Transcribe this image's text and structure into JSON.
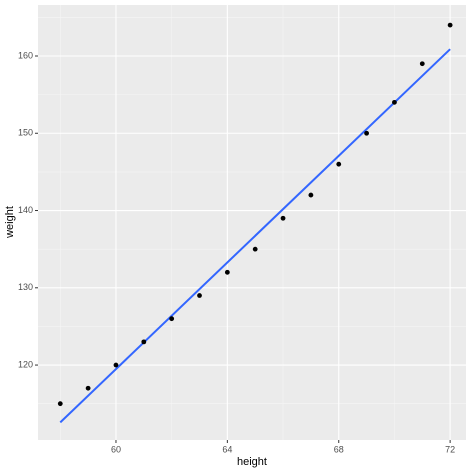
{
  "chart_data": {
    "type": "scatter",
    "x_label": "height",
    "y_label": "weight",
    "x": [
      58,
      59,
      60,
      61,
      62,
      63,
      64,
      65,
      66,
      67,
      68,
      69,
      70,
      71,
      72
    ],
    "values": [
      115,
      117,
      120,
      123,
      126,
      129,
      132,
      135,
      139,
      142,
      146,
      150,
      154,
      159,
      164
    ],
    "color": "#000000",
    "fit": {
      "x": [
        58,
        72
      ],
      "values": [
        112.58,
        160.88
      ],
      "color": "#3366ff"
    },
    "xlim": [
      57.2,
      72.57
    ],
    "ylim": [
      110.3,
      166.6
    ],
    "xticks": [
      60,
      64,
      68,
      72
    ],
    "yticks": [
      120,
      130,
      140,
      150,
      160
    ],
    "minor_xticks": [
      58,
      62,
      66,
      70
    ],
    "minor_yticks": [
      115,
      125,
      135,
      145,
      155,
      165
    ],
    "grid": true
  }
}
